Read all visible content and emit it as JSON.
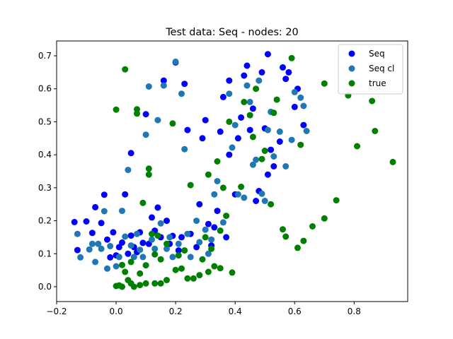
{
  "chart_data": {
    "type": "scatter",
    "title": "Test data: Seq - nodes: 20",
    "xlabel": "",
    "ylabel": "",
    "xlim": [
      -0.2,
      0.98
    ],
    "ylim": [
      -0.045,
      0.745
    ],
    "x_ticks": [
      -0.2,
      0.0,
      0.2,
      0.4,
      0.6,
      0.8
    ],
    "x_tick_labels": [
      "−0.2",
      "0.0",
      "0.2",
      "0.4",
      "0.6",
      "0.8"
    ],
    "y_ticks": [
      0.0,
      0.1,
      0.2,
      0.3,
      0.4,
      0.5,
      0.6,
      0.7
    ],
    "y_tick_labels": [
      "0.0",
      "0.1",
      "0.2",
      "0.3",
      "0.4",
      "0.5",
      "0.6",
      "0.7"
    ],
    "grid": false,
    "legend_position": "top-right",
    "series": [
      {
        "name": "Seq",
        "color": "#0000ff",
        "points": [
          [
            -0.14,
            0.196
          ],
          [
            -0.13,
            0.111
          ],
          [
            -0.1,
            0.198
          ],
          [
            -0.08,
            0.163
          ],
          [
            -0.07,
            0.241
          ],
          [
            -0.05,
            0.193
          ],
          [
            -0.04,
            0.279
          ],
          [
            -0.03,
            0.143
          ],
          [
            -0.02,
            0.089
          ],
          [
            -0.01,
            0.165
          ],
          [
            0.0,
            0.095
          ],
          [
            0.01,
            0.12
          ],
          [
            0.02,
            0.134
          ],
          [
            0.03,
            0.28
          ],
          [
            0.04,
            0.1
          ],
          [
            0.05,
            0.405
          ],
          [
            0.05,
            0.155
          ],
          [
            0.06,
            0.12
          ],
          [
            0.07,
            0.105
          ],
          [
            0.08,
            0.165
          ],
          [
            0.09,
            0.133
          ],
          [
            0.1,
            0.523
          ],
          [
            0.11,
            0.13
          ],
          [
            0.12,
            0.21
          ],
          [
            0.13,
            0.17
          ],
          [
            0.14,
            0.24
          ],
          [
            0.15,
            0.15
          ],
          [
            0.16,
            0.625
          ],
          [
            0.17,
            0.2
          ],
          [
            0.18,
            0.13
          ],
          [
            0.19,
            0.154
          ],
          [
            0.2,
            0.68
          ],
          [
            0.21,
            0.11
          ],
          [
            0.22,
            0.15
          ],
          [
            0.23,
            0.615
          ],
          [
            0.24,
            0.475
          ],
          [
            0.25,
            0.16
          ],
          [
            0.27,
            0.12
          ],
          [
            0.28,
            0.25
          ],
          [
            0.29,
            0.45
          ],
          [
            0.3,
            0.505
          ],
          [
            0.31,
            0.19
          ],
          [
            0.32,
            0.125
          ],
          [
            0.33,
            0.18
          ],
          [
            0.34,
            0.23
          ],
          [
            0.35,
            0.47
          ],
          [
            0.36,
            0.575
          ],
          [
            0.37,
            0.15
          ],
          [
            0.38,
            0.4
          ],
          [
            0.38,
            0.625
          ],
          [
            0.4,
            0.28
          ],
          [
            0.41,
            0.45
          ],
          [
            0.42,
            0.513
          ],
          [
            0.43,
            0.64
          ],
          [
            0.44,
            0.67
          ],
          [
            0.45,
            0.475
          ],
          [
            0.46,
            0.54
          ],
          [
            0.47,
            0.26
          ],
          [
            0.48,
            0.29
          ],
          [
            0.49,
            0.65
          ],
          [
            0.5,
            0.48
          ],
          [
            0.51,
            0.705
          ],
          [
            0.51,
            0.34
          ],
          [
            0.52,
            0.415
          ],
          [
            0.53,
            0.365
          ],
          [
            0.55,
            0.44
          ],
          [
            0.56,
            0.665
          ],
          [
            0.57,
            0.63
          ],
          [
            0.58,
            0.65
          ],
          [
            0.6,
            0.545
          ],
          [
            0.61,
            0.6
          ],
          [
            0.63,
            0.49
          ]
        ]
      },
      {
        "name": "Seq cl",
        "color": "#1f77b4",
        "points": [
          [
            -0.13,
            0.16
          ],
          [
            -0.12,
            0.089
          ],
          [
            -0.09,
            0.113
          ],
          [
            -0.08,
            0.13
          ],
          [
            -0.07,
            0.075
          ],
          [
            -0.06,
            0.13
          ],
          [
            -0.05,
            0.115
          ],
          [
            -0.04,
            0.229
          ],
          [
            -0.03,
            0.055
          ],
          [
            -0.02,
            0.123
          ],
          [
            0.0,
            0.062
          ],
          [
            0.01,
            0.09
          ],
          [
            0.02,
            0.23
          ],
          [
            0.03,
            0.152
          ],
          [
            0.04,
            0.354
          ],
          [
            0.05,
            0.125
          ],
          [
            0.06,
            0.09
          ],
          [
            0.07,
            0.16
          ],
          [
            0.08,
            0.112
          ],
          [
            0.09,
            0.09
          ],
          [
            0.1,
            0.461
          ],
          [
            0.11,
            0.607
          ],
          [
            0.12,
            0.143
          ],
          [
            0.13,
            0.115
          ],
          [
            0.14,
            0.505
          ],
          [
            0.15,
            0.192
          ],
          [
            0.16,
            0.61
          ],
          [
            0.17,
            0.115
          ],
          [
            0.18,
            0.15
          ],
          [
            0.19,
            0.09
          ],
          [
            0.2,
            0.682
          ],
          [
            0.21,
            0.13
          ],
          [
            0.22,
            0.585
          ],
          [
            0.23,
            0.417
          ],
          [
            0.24,
            0.16
          ],
          [
            0.25,
            0.09
          ],
          [
            0.27,
            0.2
          ],
          [
            0.28,
            0.135
          ],
          [
            0.3,
            0.173
          ],
          [
            0.31,
            0.1
          ],
          [
            0.32,
            0.143
          ],
          [
            0.33,
            0.28
          ],
          [
            0.34,
            0.32
          ],
          [
            0.36,
            0.195
          ],
          [
            0.38,
            0.585
          ],
          [
            0.39,
            0.422
          ],
          [
            0.4,
            0.49
          ],
          [
            0.41,
            0.28
          ],
          [
            0.43,
            0.27
          ],
          [
            0.44,
            0.61
          ],
          [
            0.45,
            0.56
          ],
          [
            0.46,
            0.37
          ],
          [
            0.47,
            0.385
          ],
          [
            0.48,
            0.625
          ],
          [
            0.49,
            0.282
          ],
          [
            0.5,
            0.26
          ],
          [
            0.51,
            0.475
          ],
          [
            0.52,
            0.53
          ],
          [
            0.53,
            0.395
          ],
          [
            0.55,
            0.47
          ],
          [
            0.57,
            0.365
          ],
          [
            0.59,
            0.445
          ],
          [
            0.6,
            0.59
          ],
          [
            0.62,
            0.573
          ],
          [
            0.63,
            0.548
          ],
          [
            0.64,
            0.472
          ]
        ]
      },
      {
        "name": "true",
        "color": "#008000",
        "points": [
          [
            0.0,
            0.537
          ],
          [
            0.0,
            0.002
          ],
          [
            0.01,
            0.004
          ],
          [
            0.02,
            0.0
          ],
          [
            0.02,
            0.066
          ],
          [
            0.03,
            0.045
          ],
          [
            0.03,
            0.659
          ],
          [
            0.04,
            0.02
          ],
          [
            0.05,
            0.01
          ],
          [
            0.05,
            0.075
          ],
          [
            0.06,
            0.0
          ],
          [
            0.07,
            0.538
          ],
          [
            0.07,
            0.525
          ],
          [
            0.08,
            0.04
          ],
          [
            0.08,
            0.005
          ],
          [
            0.09,
            0.254
          ],
          [
            0.1,
            0.065
          ],
          [
            0.1,
            0.01
          ],
          [
            0.11,
            0.358
          ],
          [
            0.11,
            0.34
          ],
          [
            0.12,
            0.16
          ],
          [
            0.13,
            0.098
          ],
          [
            0.13,
            0.01
          ],
          [
            0.14,
            0.155
          ],
          [
            0.15,
            0.083
          ],
          [
            0.15,
            0.01
          ],
          [
            0.17,
            0.02
          ],
          [
            0.17,
            0.13
          ],
          [
            0.19,
            0.495
          ],
          [
            0.2,
            0.051
          ],
          [
            0.21,
            0.095
          ],
          [
            0.22,
            0.055
          ],
          [
            0.23,
            0.11
          ],
          [
            0.24,
            0.025
          ],
          [
            0.25,
            0.308
          ],
          [
            0.26,
            0.025
          ],
          [
            0.28,
            0.035
          ],
          [
            0.29,
            0.083
          ],
          [
            0.3,
            0.15
          ],
          [
            0.31,
            0.34
          ],
          [
            0.31,
            0.045
          ],
          [
            0.32,
            0.115
          ],
          [
            0.33,
            0.062
          ],
          [
            0.34,
            0.38
          ],
          [
            0.35,
            0.17
          ],
          [
            0.35,
            0.056
          ],
          [
            0.36,
            0.3
          ],
          [
            0.37,
            0.215
          ],
          [
            0.38,
            0.5
          ],
          [
            0.39,
            0.043
          ],
          [
            0.42,
            0.303
          ],
          [
            0.43,
            0.56
          ],
          [
            0.45,
            0.52
          ],
          [
            0.46,
            0.454
          ],
          [
            0.47,
            0.6
          ],
          [
            0.49,
            0.387
          ],
          [
            0.5,
            0.412
          ],
          [
            0.52,
            0.25
          ],
          [
            0.53,
            0.527
          ],
          [
            0.54,
            0.567
          ],
          [
            0.56,
            0.174
          ],
          [
            0.57,
            0.152
          ],
          [
            0.59,
            0.693
          ],
          [
            0.61,
            0.118
          ],
          [
            0.62,
            0.43
          ],
          [
            0.63,
            0.139
          ],
          [
            0.66,
            0.183
          ],
          [
            0.7,
            0.207
          ],
          [
            0.7,
            0.616
          ],
          [
            0.74,
            0.262
          ],
          [
            0.78,
            0.58
          ],
          [
            0.81,
            0.426
          ],
          [
            0.86,
            0.563
          ],
          [
            0.87,
            0.472
          ],
          [
            0.93,
            0.378
          ]
        ]
      }
    ]
  }
}
